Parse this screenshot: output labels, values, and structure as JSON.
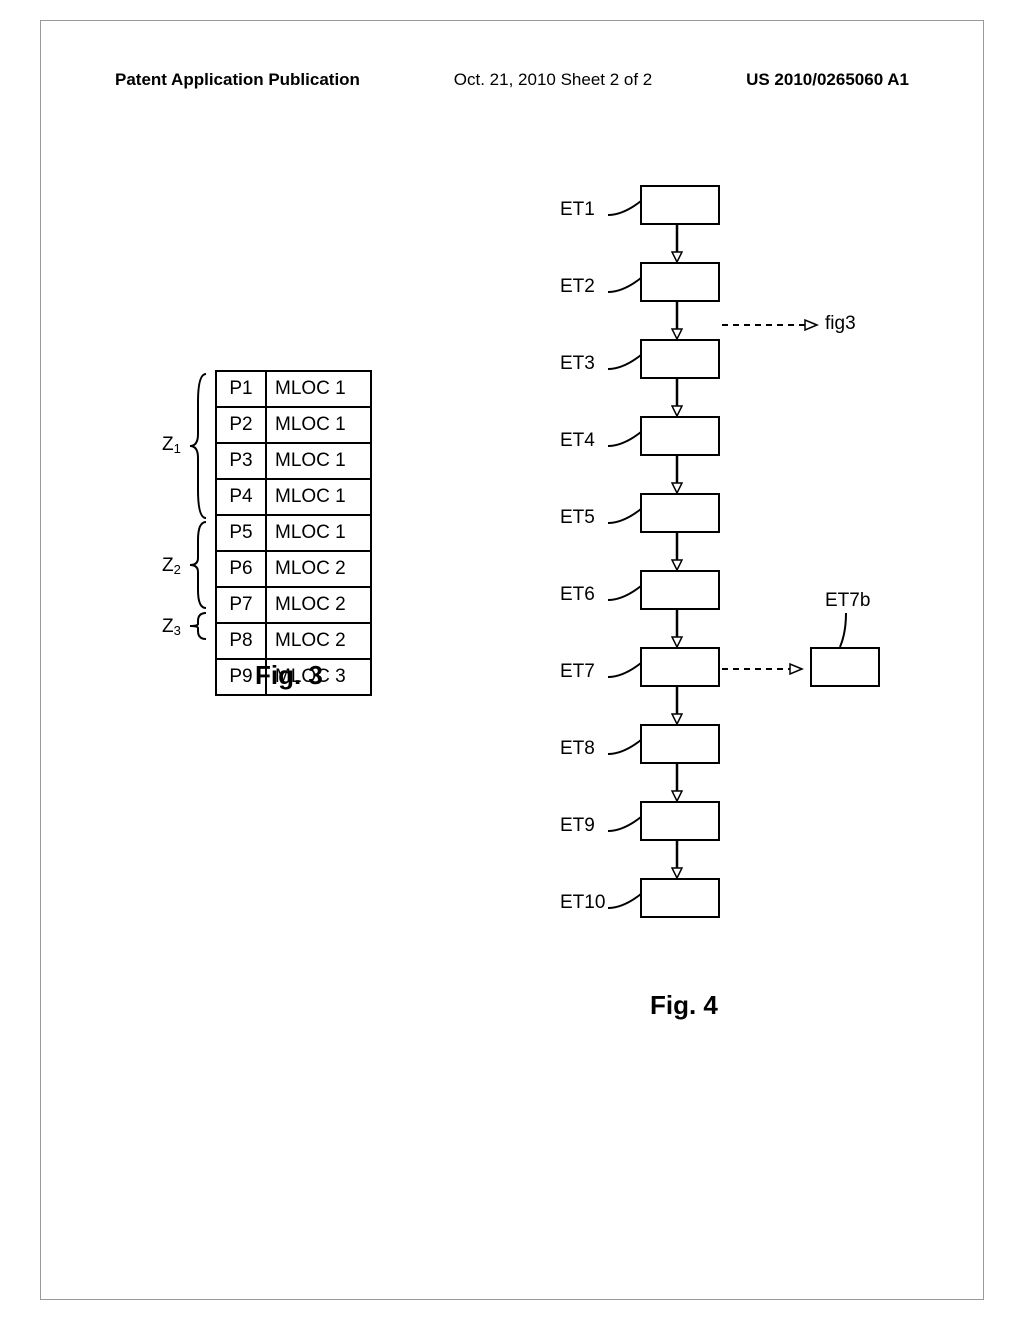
{
  "header": {
    "left": "Patent Application Publication",
    "center": "Oct. 21, 2010  Sheet 2 of 2",
    "right": "US 2010/0265060 A1"
  },
  "fig3": {
    "caption": "Fig. 3",
    "zones": [
      {
        "label": "Z",
        "sub": "1",
        "rows": 5,
        "start": 0
      },
      {
        "label": "Z",
        "sub": "2",
        "rows": 3,
        "start": 5
      },
      {
        "label": "Z",
        "sub": "3",
        "rows": 1,
        "start": 8
      }
    ],
    "rows": [
      {
        "p": "P1",
        "m": "MLOC 1"
      },
      {
        "p": "P2",
        "m": "MLOC 1"
      },
      {
        "p": "P3",
        "m": "MLOC 1"
      },
      {
        "p": "P4",
        "m": "MLOC 1"
      },
      {
        "p": "P5",
        "m": "MLOC 1"
      },
      {
        "p": "P6",
        "m": "MLOC 2"
      },
      {
        "p": "P7",
        "m": "MLOC 2"
      },
      {
        "p": "P8",
        "m": "MLOC 2"
      },
      {
        "p": "P9",
        "m": "MLOC 3"
      }
    ]
  },
  "fig4": {
    "caption": "Fig. 4",
    "steps": [
      "ET1",
      "ET2",
      "ET3",
      "ET4",
      "ET5",
      "ET6",
      "ET7",
      "ET8",
      "ET9",
      "ET10"
    ],
    "branch_label": "ET7b",
    "fig3_ref": "fig3"
  },
  "colors": {
    "stroke": "#000000",
    "bg": "#ffffff"
  }
}
